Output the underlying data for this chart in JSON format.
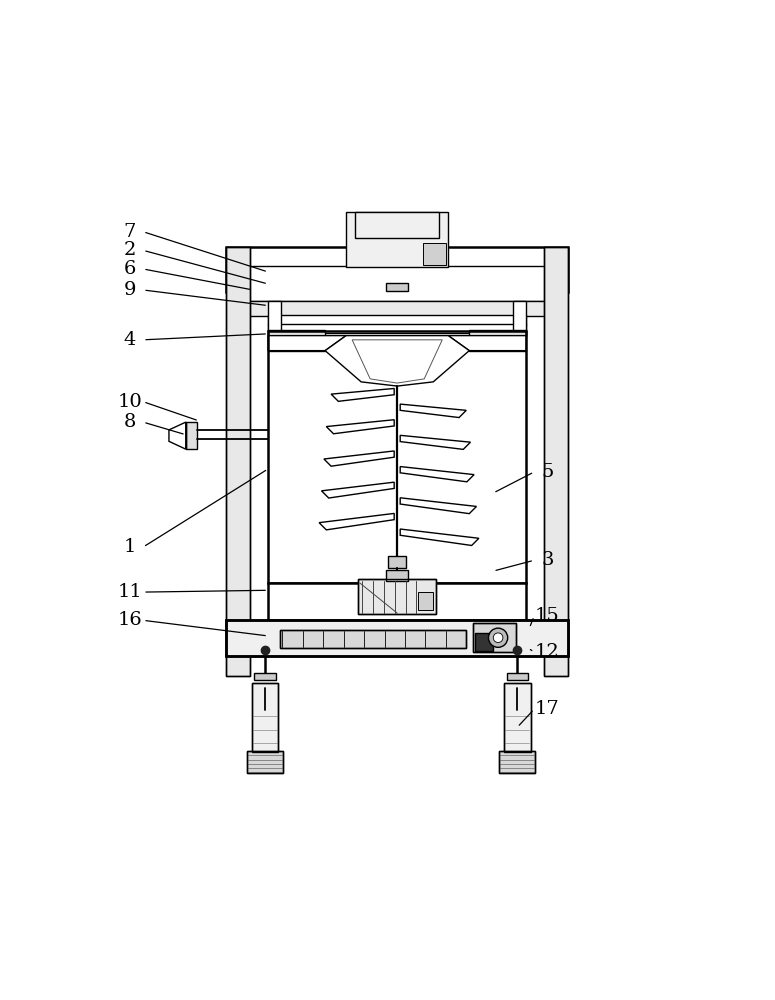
{
  "bg_color": "#ffffff",
  "line_color": "#000000",
  "lw": 1.0,
  "tlw": 1.8,
  "fig_width": 7.75,
  "fig_height": 10.0,
  "annotations": {
    "7": {
      "lp": [
        0.055,
        0.955
      ],
      "ae": [
        0.285,
        0.888
      ]
    },
    "2": {
      "lp": [
        0.055,
        0.924
      ],
      "ae": [
        0.285,
        0.868
      ]
    },
    "6": {
      "lp": [
        0.055,
        0.893
      ],
      "ae": [
        0.26,
        0.858
      ]
    },
    "9": {
      "lp": [
        0.055,
        0.858
      ],
      "ae": [
        0.285,
        0.832
      ]
    },
    "4": {
      "lp": [
        0.055,
        0.775
      ],
      "ae": [
        0.285,
        0.785
      ]
    },
    "10": {
      "lp": [
        0.055,
        0.672
      ],
      "ae": [
        0.17,
        0.64
      ]
    },
    "8": {
      "lp": [
        0.055,
        0.638
      ],
      "ae": [
        0.148,
        0.617
      ]
    },
    "1": {
      "lp": [
        0.055,
        0.43
      ],
      "ae": [
        0.285,
        0.56
      ]
    },
    "11": {
      "lp": [
        0.055,
        0.355
      ],
      "ae": [
        0.285,
        0.358
      ]
    },
    "16": {
      "lp": [
        0.055,
        0.308
      ],
      "ae": [
        0.285,
        0.282
      ]
    },
    "5": {
      "lp": [
        0.75,
        0.555
      ],
      "ae": [
        0.66,
        0.52
      ]
    },
    "3": {
      "lp": [
        0.75,
        0.408
      ],
      "ae": [
        0.66,
        0.39
      ]
    },
    "15": {
      "lp": [
        0.75,
        0.315
      ],
      "ae": [
        0.72,
        0.295
      ]
    },
    "12": {
      "lp": [
        0.75,
        0.255
      ],
      "ae": [
        0.718,
        0.262
      ]
    },
    "17": {
      "lp": [
        0.75,
        0.16
      ],
      "ae": [
        0.7,
        0.13
      ]
    }
  }
}
